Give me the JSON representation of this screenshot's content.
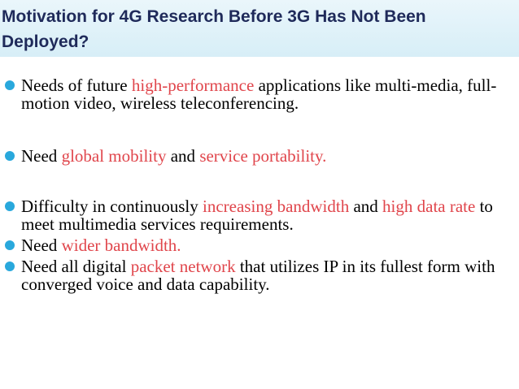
{
  "slide": {
    "title": "Motivation for 4G Research Before 3G Has Not Been Deployed?",
    "colors": {
      "title": "#1f2a5a",
      "bullet": "#29a8dc",
      "highlight": "#e0454b",
      "header_bg": "#d7eef7"
    },
    "bullets": [
      {
        "t1": "Needs of future ",
        "h1": "high-performance",
        "t2": " applications like multi-media, full-motion video, wireless teleconferencing."
      },
      {
        "t1": "Need ",
        "h1": "global mobility",
        "t2": " and ",
        "h2": "service portability."
      },
      {
        "t1": "Difficulty in continuously ",
        "h1": "increasing bandwidth",
        "t2": " and ",
        "h2": "high data rate",
        "t3": " to meet multimedia services requirements."
      },
      {
        "t1": "Need ",
        "h1": "wider bandwidth."
      },
      {
        "t1": "Need all digital ",
        "h1": "packet network",
        "t2": " that utilizes IP in its fullest form with converged voice and data capability."
      }
    ]
  }
}
